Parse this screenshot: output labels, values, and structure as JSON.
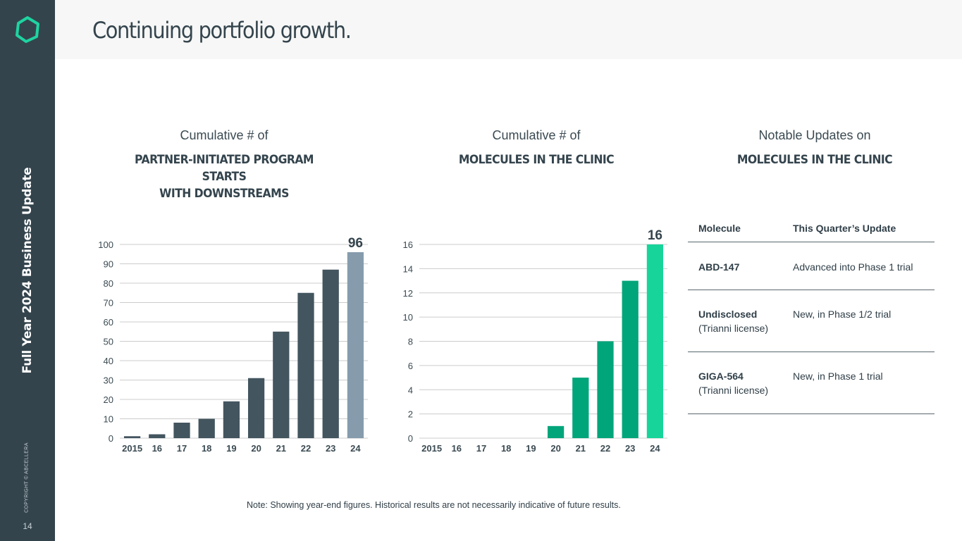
{
  "sidebar": {
    "vertical_title": "Full Year 2024 Business Update",
    "copyright": "COPYRIGHT © ABCELLERA",
    "page_number": "14"
  },
  "header": {
    "title": "Continuing portfolio growth."
  },
  "column_1": {
    "subtitle": "Cumulative # of",
    "title_line1": "PARTNER-INITIATED PROGRAM STARTS",
    "title_line2": "WITH DOWNSTREAMS"
  },
  "column_2": {
    "subtitle": "Cumulative # of",
    "title_line1": "MOLECULES IN THE CLINIC"
  },
  "column_3": {
    "subtitle": "Notable Updates on",
    "title_line1": "MOLECULES IN THE CLINIC"
  },
  "chart_data": [
    {
      "type": "bar",
      "categories": [
        "2015",
        "16",
        "17",
        "18",
        "19",
        "20",
        "21",
        "22",
        "23",
        "24"
      ],
      "values": [
        1,
        2,
        8,
        10,
        19,
        31,
        55,
        75,
        87,
        96
      ],
      "ylim": [
        0,
        100
      ],
      "yticks": [
        0,
        10,
        20,
        30,
        40,
        50,
        60,
        70,
        80,
        90,
        100
      ],
      "grid": true,
      "value_labels": {
        "24": "96"
      },
      "colors": {
        "bar": "#43555f",
        "highlight": "#869cad",
        "grid": "#cccccc"
      }
    },
    {
      "type": "bar",
      "categories": [
        "2015",
        "16",
        "17",
        "18",
        "19",
        "20",
        "21",
        "22",
        "23",
        "24"
      ],
      "values": [
        0,
        0,
        0,
        0,
        0,
        1,
        5,
        8,
        13,
        16
      ],
      "ylim": [
        0,
        16
      ],
      "yticks": [
        0,
        2,
        4,
        6,
        8,
        10,
        12,
        14,
        16
      ],
      "grid": true,
      "value_labels": {
        "24": "16"
      },
      "colors": {
        "bar": "#00a57a",
        "highlight": "#17d49a",
        "grid": "#cccccc"
      }
    }
  ],
  "table": {
    "headers": [
      "Molecule",
      "This Quarter’s Update"
    ],
    "rows": [
      {
        "name": "ABD-147",
        "sub": "",
        "update": "Advanced into Phase 1 trial"
      },
      {
        "name": "Undisclosed",
        "sub": "(Trianni license)",
        "update": "New, in Phase 1/2 trial"
      },
      {
        "name": "GIGA-564",
        "sub": "(Trianni license)",
        "update": "New, in Phase 1 trial"
      }
    ]
  },
  "note": "Note: Showing year-end figures. Historical results are not necessarily indicative of future results.",
  "colors": {
    "sidebar": "#34444d",
    "header_bg": "#f6f7f6",
    "logo": "#1ed4a0"
  },
  "icons": {
    "logo": "hexagon-logo-icon"
  }
}
